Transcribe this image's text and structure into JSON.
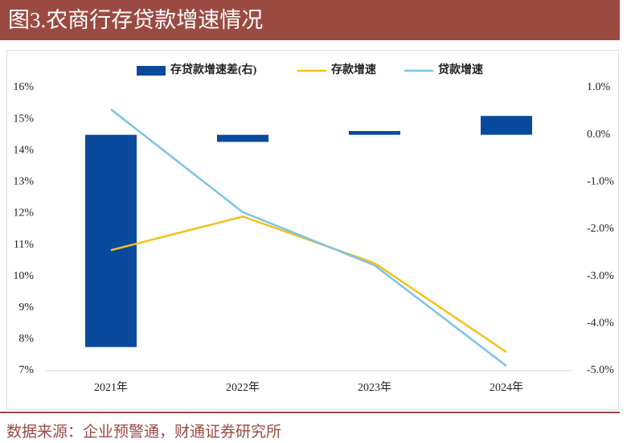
{
  "chart_data": {
    "type": "combo",
    "title": "图3.农商行存贷款增速情况",
    "source": "数据来源：企业预警通，财通证券研究所",
    "categories": [
      "2021年",
      "2022年",
      "2023年",
      "2024年"
    ],
    "series": [
      {
        "name": "存贷款增速差(右)",
        "type": "bar",
        "axis": "y2",
        "color": "#0a4a9c",
        "values": [
          -4.5,
          -0.15,
          0.08,
          0.4
        ]
      },
      {
        "name": "存款增速",
        "type": "line",
        "color": "#f2c21a",
        "values": [
          10.83,
          11.9,
          10.42,
          7.59
        ]
      },
      {
        "name": "贷款增速",
        "type": "line",
        "color": "#7cc3e6",
        "values": [
          15.31,
          12.04,
          10.35,
          7.15
        ]
      }
    ],
    "ylim": [
      7,
      16
    ],
    "yticks": [
      {
        "value": 7,
        "label": "7%"
      },
      {
        "value": 8,
        "label": "8%"
      },
      {
        "value": 9,
        "label": "9%"
      },
      {
        "value": 10,
        "label": "10%"
      },
      {
        "value": 11,
        "label": "11%"
      },
      {
        "value": 12,
        "label": "12%"
      },
      {
        "value": 13,
        "label": "13%"
      },
      {
        "value": 14,
        "label": "14%"
      },
      {
        "value": 15,
        "label": "15%"
      },
      {
        "value": 16,
        "label": "16%"
      }
    ],
    "y2lim": [
      -5,
      1
    ],
    "y2ticks": [
      {
        "value": -5,
        "label": "-5.0%"
      },
      {
        "value": -4,
        "label": "-4.0%"
      },
      {
        "value": -3,
        "label": "-3.0%"
      },
      {
        "value": -2,
        "label": "-2.0%"
      },
      {
        "value": -1,
        "label": "-1.0%"
      },
      {
        "value": 0,
        "label": "0.0%"
      },
      {
        "value": 1,
        "label": "1.0%"
      }
    ]
  }
}
